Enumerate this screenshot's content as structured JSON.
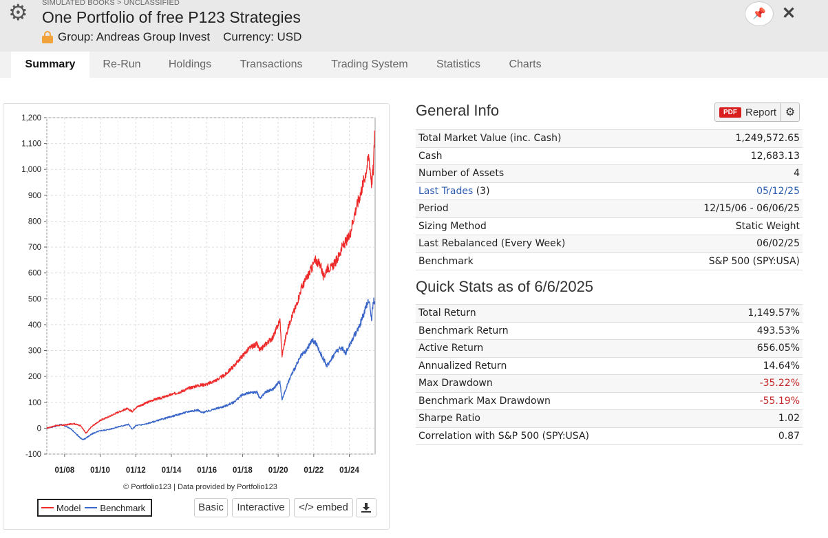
{
  "header": {
    "breadcrumb": "SIMULATED BOOKS > UNCLASSIFIED",
    "title": "One Portfolio of free P123 Strategies",
    "group": "Group: Andreas Group Invest",
    "currency": "Currency: USD",
    "icons": [
      "gear-icon",
      "lock-icon",
      "pin-icon",
      "close-icon"
    ]
  },
  "tabs": [
    {
      "label": "Summary",
      "active": true
    },
    {
      "label": "Re-Run"
    },
    {
      "label": "Holdings"
    },
    {
      "label": "Transactions"
    },
    {
      "label": "Trading System"
    },
    {
      "label": "Statistics"
    },
    {
      "label": "Charts"
    }
  ],
  "general_info": {
    "heading": "General Info",
    "report_badge": "PDF",
    "report_label": "Report",
    "rows": [
      {
        "label": "Total Market Value (inc. Cash)",
        "value": "1,249,572.65"
      },
      {
        "label": "Cash",
        "value": "12,683.13"
      },
      {
        "label": "Number of Assets",
        "value": "4"
      },
      {
        "label": "Last Trades",
        "count": "(3)",
        "value": "05/12/25"
      },
      {
        "label": "Period",
        "value": "12/15/06 - 06/06/25"
      },
      {
        "label": "Sizing Method",
        "value": "Static Weight"
      },
      {
        "label": "Last Rebalanced (Every Week)",
        "value": "06/02/25"
      },
      {
        "label": "Benchmark",
        "value": "S&P 500 (SPY:USA)"
      }
    ]
  },
  "quick_stats": {
    "heading": "Quick Stats as of 6/6/2025",
    "rows": [
      {
        "label": "Total Return",
        "value": "1,149.57%"
      },
      {
        "label": "Benchmark Return",
        "value": "493.53%"
      },
      {
        "label": "Active Return",
        "value": "656.05%"
      },
      {
        "label": "Annualized Return",
        "value": "14.64%"
      },
      {
        "label": "Max Drawdown",
        "value": "-35.22%"
      },
      {
        "label": "Benchmark Max Drawdown",
        "value": "-55.19%"
      },
      {
        "label": "Sharpe Ratio",
        "value": "1.02"
      },
      {
        "label": "Correlation with S&P 500 (SPY:USA)",
        "value": "0.87"
      }
    ]
  },
  "chart_controls": {
    "credit": "© Portfolio123 | Data provided by Portfolio123",
    "basic_label": "Basic",
    "interactive_label": "Interactive",
    "embed_label": "</> embed",
    "download_icon": "download-icon"
  },
  "colors": {
    "model": "#ee2b2b",
    "benchmark": "#3b67c9",
    "negative": "#c62828",
    "link": "#2a5db0"
  },
  "chart_data": {
    "type": "line",
    "xlabel": "",
    "ylabel": "",
    "ylim": [
      -100,
      1200
    ],
    "xlim": [
      2007.0,
      2025.45
    ],
    "y_ticks": [
      "-100",
      "0",
      "100",
      "200",
      "300",
      "400",
      "500",
      "600",
      "700",
      "800",
      "900",
      "1,000",
      "1,100",
      "1,200"
    ],
    "x_ticks": [
      "01/08",
      "01/10",
      "01/12",
      "01/14",
      "01/16",
      "01/18",
      "01/20",
      "01/22",
      "01/24"
    ],
    "grid": true,
    "legend_placement": "bottom-left",
    "series": [
      {
        "name": "Model",
        "x": [
          2007.0,
          2007.5,
          2008.0,
          2008.5,
          2008.9,
          2009.2,
          2009.5,
          2010.0,
          2010.5,
          2011.0,
          2011.5,
          2011.8,
          2012.0,
          2012.5,
          2013.0,
          2013.5,
          2014.0,
          2014.5,
          2015.0,
          2015.5,
          2016.0,
          2016.5,
          2017.0,
          2017.5,
          2018.0,
          2018.4,
          2018.8,
          2018.98,
          2019.3,
          2019.7,
          2020.0,
          2020.1,
          2020.22,
          2020.45,
          2020.7,
          2021.0,
          2021.3,
          2021.6,
          2021.9,
          2022.1,
          2022.4,
          2022.55,
          2022.75,
          2023.0,
          2023.3,
          2023.6,
          2023.8,
          2024.0,
          2024.3,
          2024.6,
          2024.9,
          2025.1,
          2025.25,
          2025.35,
          2025.43
        ],
        "values": [
          0,
          10,
          12,
          18,
          10,
          -20,
          5,
          30,
          45,
          62,
          75,
          65,
          80,
          95,
          110,
          118,
          130,
          140,
          155,
          165,
          170,
          185,
          205,
          240,
          280,
          310,
          325,
          300,
          325,
          350,
          400,
          420,
          280,
          360,
          420,
          470,
          540,
          580,
          620,
          650,
          630,
          580,
          620,
          620,
          650,
          700,
          720,
          740,
          830,
          900,
          980,
          1050,
          950,
          1000,
          1150
        ]
      },
      {
        "name": "Benchmark",
        "x": [
          2007.0,
          2007.5,
          2007.8,
          2008.3,
          2008.7,
          2009.0,
          2009.2,
          2009.6,
          2010.0,
          2010.5,
          2011.0,
          2011.6,
          2011.8,
          2012.0,
          2012.5,
          2013.0,
          2013.5,
          2014.0,
          2014.5,
          2015.0,
          2015.5,
          2015.7,
          2016.0,
          2016.5,
          2017.0,
          2017.5,
          2018.0,
          2018.3,
          2018.8,
          2018.98,
          2019.3,
          2019.7,
          2020.0,
          2020.1,
          2020.22,
          2020.45,
          2020.7,
          2021.0,
          2021.3,
          2021.6,
          2021.9,
          2022.1,
          2022.45,
          2022.75,
          2023.0,
          2023.3,
          2023.6,
          2023.8,
          2024.0,
          2024.3,
          2024.6,
          2024.9,
          2025.1,
          2025.25,
          2025.35,
          2025.43
        ],
        "values": [
          0,
          8,
          15,
          0,
          -25,
          -45,
          -38,
          -20,
          -10,
          -5,
          5,
          15,
          -5,
          10,
          15,
          25,
          35,
          45,
          55,
          65,
          70,
          60,
          65,
          75,
          85,
          100,
          130,
          135,
          140,
          115,
          140,
          150,
          175,
          180,
          110,
          155,
          200,
          240,
          280,
          300,
          340,
          330,
          280,
          240,
          270,
          300,
          310,
          290,
          320,
          360,
          400,
          460,
          500,
          420,
          490,
          490
        ]
      }
    ]
  }
}
